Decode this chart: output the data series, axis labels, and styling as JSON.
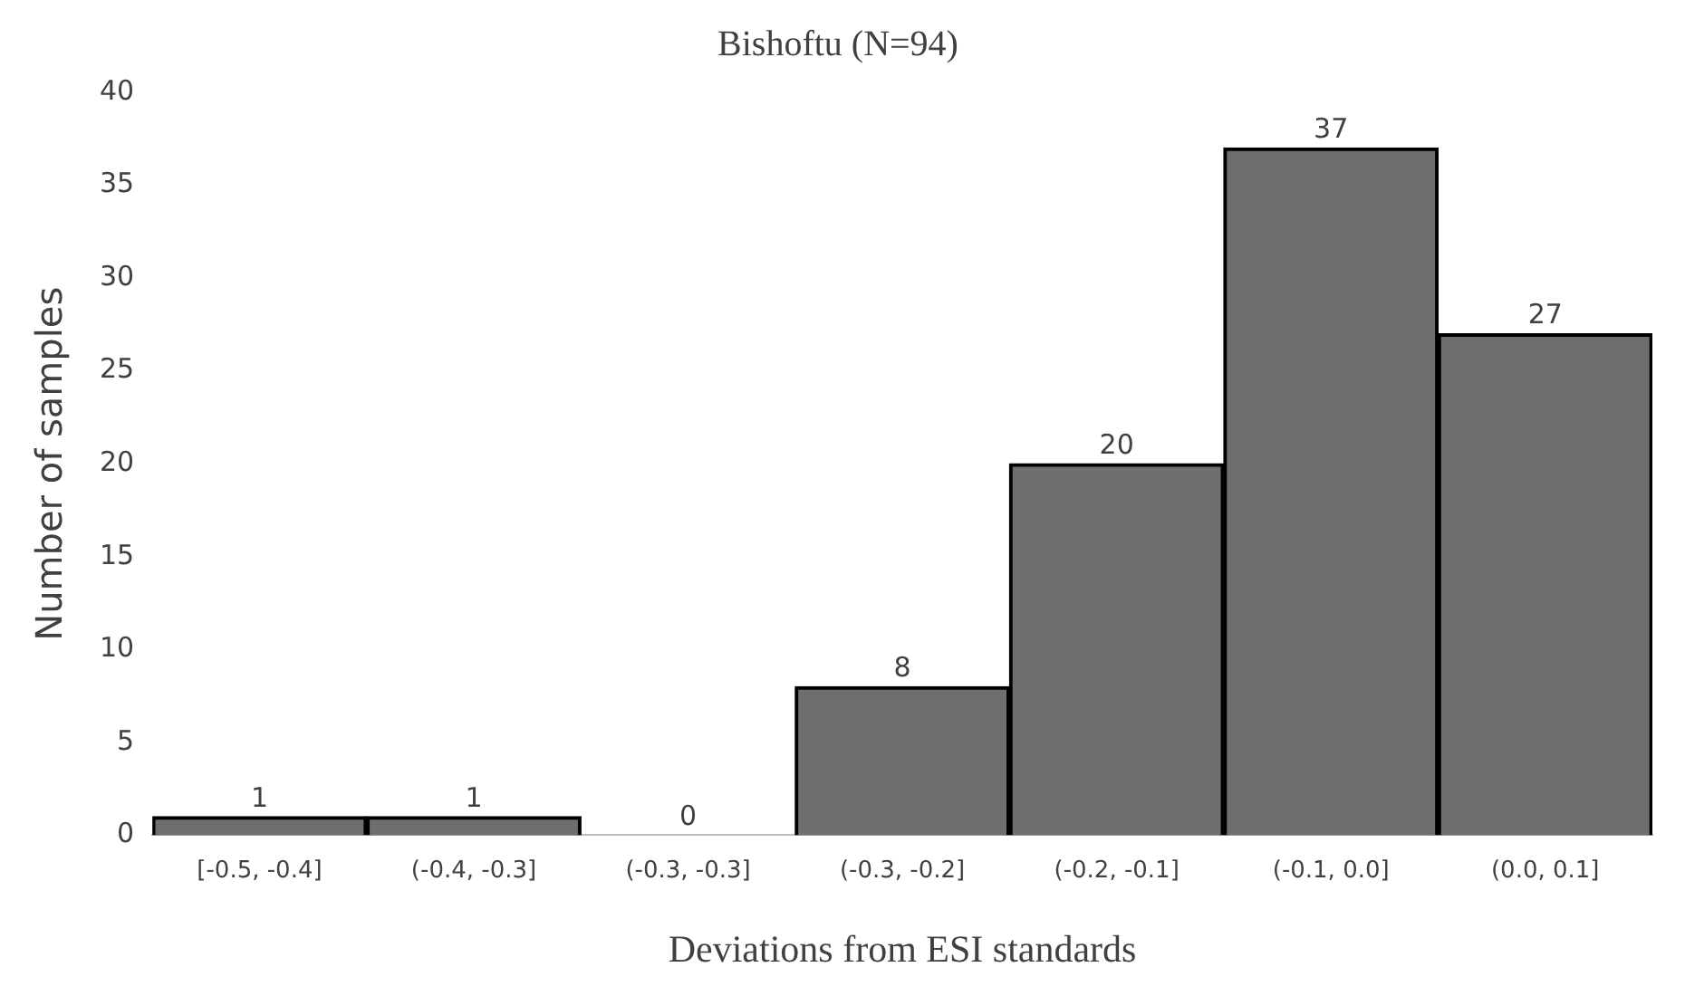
{
  "chart_data": {
    "type": "bar",
    "title": "Bishoftu (N=94)",
    "xlabel": "Deviations from ESI standards",
    "ylabel": "Number of samples",
    "categories": [
      "[-0.5, -0.4]",
      "(-0.4, -0.3]",
      "(-0.3, -0.3]",
      "(-0.3, -0.2]",
      "(-0.2, -0.1]",
      "(-0.1, 0.0]",
      "(0.0, 0.1]"
    ],
    "values": [
      1,
      1,
      0,
      8,
      20,
      37,
      27
    ],
    "color": "#6e6e6e",
    "ylim": [
      0,
      40
    ],
    "yticks": [
      0,
      5,
      10,
      15,
      20,
      25,
      30,
      35,
      40
    ],
    "grid": false,
    "legend": false,
    "data_labels": true
  }
}
